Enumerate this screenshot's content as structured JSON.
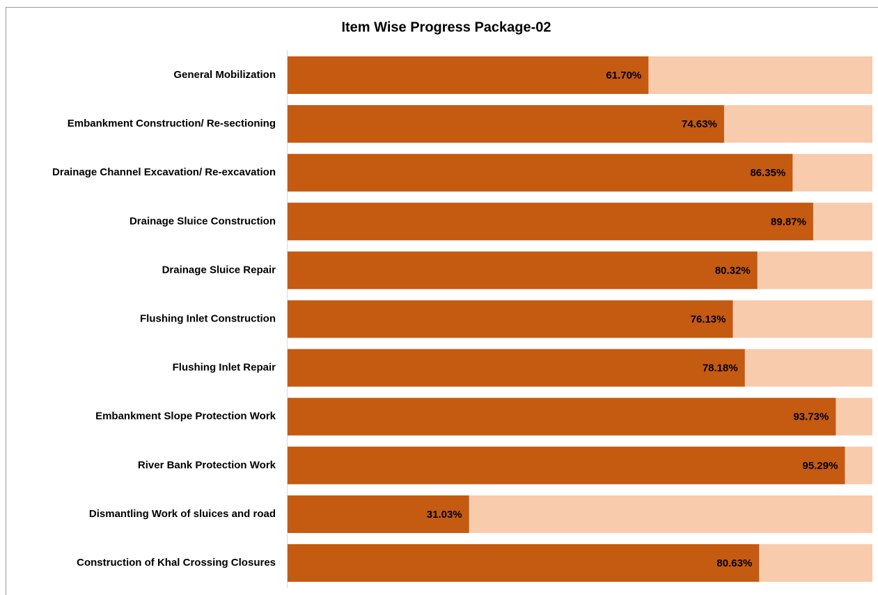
{
  "chart_data": {
    "type": "bar",
    "orientation": "horizontal",
    "title": "Item Wise Progress Package-02",
    "categories": [
      "General Mobilization",
      "Embankment Construction/ Re-sectioning",
      "Drainage Channel Excavation/ Re-excavation",
      "Drainage Sluice Construction",
      "Drainage Sluice Repair",
      "Flushing Inlet Construction",
      "Flushing Inlet Repair",
      "Embankment Slope Protection Work",
      "River Bank Protection Work",
      "Dismantling Work of sluices and road",
      "Construction of Khal Crossing Closures"
    ],
    "values": [
      61.7,
      74.63,
      86.35,
      89.87,
      80.32,
      76.13,
      78.18,
      93.73,
      95.29,
      31.03,
      80.63
    ],
    "value_labels": [
      "61.70%",
      "74.63%",
      "86.35%",
      "89.87%",
      "80.32%",
      "76.13%",
      "78.18%",
      "93.73%",
      "95.29%",
      "31.03%",
      "80.63%"
    ],
    "color": "#c55a11",
    "track_color": "#f8cbad",
    "xlim": [
      0,
      100
    ]
  }
}
